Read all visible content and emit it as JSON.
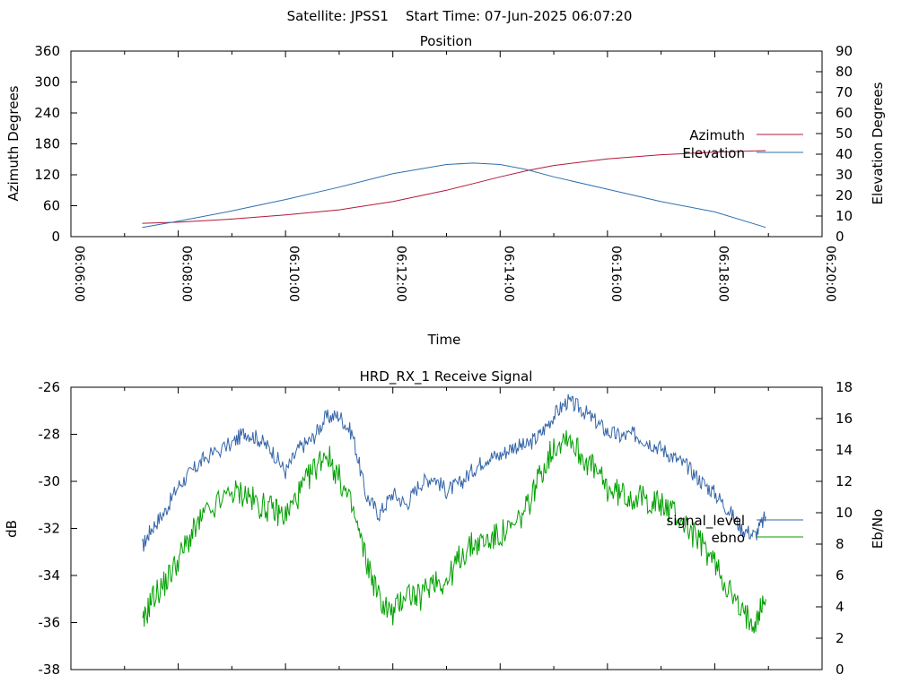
{
  "header": {
    "title": "Satellite: JPSS1    Start Time: 07-Jun-2025 06:07:20"
  },
  "chart_data": [
    {
      "type": "line",
      "title": "Position",
      "xlabel": "Time",
      "ylabel": "Azimuth Degrees",
      "y2label": "Elevation Degrees",
      "x_tick_labels": [
        "06:06:00",
        "06:08:00",
        "06:10:00",
        "06:12:00",
        "06:14:00",
        "06:16:00",
        "06:18:00",
        "06:20:00"
      ],
      "xlim_minutes": [
        0,
        14
      ],
      "ylim": [
        0,
        360
      ],
      "y_ticks": [
        0,
        60,
        120,
        180,
        240,
        300,
        360
      ],
      "y2lim": [
        0,
        90
      ],
      "y2_ticks": [
        0,
        10,
        20,
        30,
        40,
        50,
        60,
        70,
        80,
        90
      ],
      "legend_position": "right",
      "series": [
        {
          "name": "Azimuth",
          "axis": "y",
          "color": "#b2183a",
          "x_minutes": [
            1.33,
            2,
            3,
            4,
            5,
            6,
            7,
            7.5,
            8,
            8.5,
            9,
            10,
            11,
            12,
            12.95
          ],
          "values": [
            26,
            28,
            34,
            42,
            52,
            68,
            90,
            103,
            116,
            128,
            138,
            151,
            159,
            164,
            167
          ]
        },
        {
          "name": "Elevation",
          "axis": "y2",
          "color": "#2f6fb0",
          "x_minutes": [
            1.33,
            2,
            3,
            4,
            5,
            6,
            7,
            7.5,
            8,
            8.5,
            9,
            10,
            11,
            12,
            12.95
          ],
          "values": [
            4.5,
            7.5,
            12.5,
            18,
            24,
            30.5,
            35,
            35.7,
            35,
            32.5,
            29,
            23,
            17,
            12,
            4.5
          ]
        }
      ]
    },
    {
      "type": "line",
      "title": "HRD_RX_1 Receive Signal",
      "xlabel": "",
      "ylabel": "dB",
      "y2label": "Eb/No",
      "xlim_minutes": [
        0,
        14
      ],
      "ylim": [
        -38,
        -26
      ],
      "y_ticks": [
        -38,
        -36,
        -34,
        -32,
        -30,
        -28,
        -26
      ],
      "y2lim": [
        0,
        18
      ],
      "y2_ticks": [
        0,
        2,
        4,
        6,
        8,
        10,
        12,
        14,
        16,
        18
      ],
      "legend_position": "right",
      "series": [
        {
          "name": "signal_level",
          "axis": "y",
          "color": "#3565a8",
          "x_minutes": [
            1.33,
            1.5,
            1.75,
            2,
            2.25,
            2.5,
            3,
            3.25,
            3.5,
            3.75,
            4,
            4.25,
            4.5,
            4.75,
            5,
            5.25,
            5.5,
            5.75,
            6,
            6.25,
            6.5,
            6.75,
            7,
            7.25,
            7.5,
            7.75,
            8,
            8.25,
            8.5,
            8.75,
            9,
            9.25,
            9.5,
            9.75,
            10,
            10.25,
            10.5,
            10.75,
            11,
            11.25,
            11.5,
            11.75,
            12,
            12.25,
            12.5,
            12.75,
            12.95
          ],
          "values": [
            -32.8,
            -32,
            -31.3,
            -30.2,
            -29.6,
            -29,
            -28.4,
            -27.9,
            -28.2,
            -28.7,
            -29.6,
            -28.6,
            -28.2,
            -27.3,
            -27.2,
            -28,
            -30.6,
            -31.4,
            -30.5,
            -31,
            -30.1,
            -29.8,
            -30.4,
            -30.1,
            -29.5,
            -29,
            -28.9,
            -28.5,
            -28.5,
            -28,
            -27.2,
            -26.6,
            -26.9,
            -27.4,
            -27.9,
            -28.1,
            -28,
            -28.3,
            -28.6,
            -29,
            -29.4,
            -30,
            -30.5,
            -31.2,
            -32,
            -32.3,
            -31.5
          ]
        },
        {
          "name": "ebno",
          "axis": "y2",
          "color": "#00a000",
          "x_minutes": [
            1.33,
            1.5,
            1.75,
            2,
            2.25,
            2.5,
            3,
            3.25,
            3.5,
            3.75,
            4,
            4.25,
            4.5,
            4.75,
            5,
            5.25,
            5.5,
            5.75,
            6,
            6.25,
            6.5,
            6.75,
            7,
            7.25,
            7.5,
            7.75,
            8,
            8.25,
            8.5,
            8.75,
            9,
            9.25,
            9.5,
            9.75,
            10,
            10.25,
            10.5,
            10.75,
            11,
            11.25,
            11.5,
            11.75,
            12,
            12.25,
            12.5,
            12.75,
            12.95
          ],
          "values": [
            2.7,
            4.5,
            5.5,
            7,
            8.6,
            9.8,
            11.3,
            11.2,
            10.5,
            10.2,
            9.8,
            11.2,
            12.6,
            13.9,
            12.2,
            10.2,
            7,
            4.5,
            3.5,
            5,
            4.5,
            5.8,
            5.5,
            7.2,
            8,
            8.2,
            8.6,
            9,
            10.3,
            12.5,
            14.2,
            15,
            13.7,
            12.8,
            11.5,
            11.2,
            11,
            10.8,
            10.5,
            10,
            9,
            8,
            6.8,
            5.2,
            3.5,
            3.2,
            4.5
          ]
        }
      ]
    }
  ]
}
